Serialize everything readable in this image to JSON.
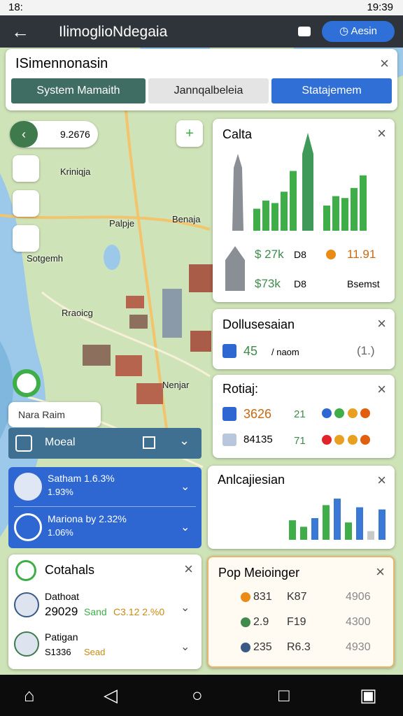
{
  "status_bar": {
    "time_left": "18:",
    "time_right": "19:39"
  },
  "header": {
    "title": "IlimoglioNdegaia",
    "button": "Aesin"
  },
  "top_panel": {
    "title": "ISimennonasin",
    "tabs": [
      "System Mamaith",
      "Jannqalbeleia",
      "Statajemem"
    ]
  },
  "map": {
    "search_value": "9.2676",
    "labels": [
      "Kriniqja",
      "Palpje",
      "Benaja",
      "Sotgemh",
      "Rraoicg",
      "Nenjar"
    ]
  },
  "left_panel": {
    "chip": "Nara Raim",
    "layer": "Moeal",
    "stats": [
      {
        "label": "Satham 1.6.3%",
        "sub": "1.93%"
      },
      {
        "label": "Mariona by 2.32%",
        "sub": "1.06%"
      }
    ],
    "contacts": {
      "title": "Cotahals",
      "items": [
        {
          "name": "Dathoat",
          "line": [
            "29029",
            "Sand",
            "C3.12 2.%0"
          ]
        },
        {
          "name": "Patigan",
          "line": [
            "S1336",
            "Sead"
          ]
        }
      ]
    }
  },
  "cards": {
    "calta": {
      "title": "Calta",
      "chart_a": {
        "values": [
          35,
          48,
          44,
          62,
          95
        ],
        "color": "#3fae49"
      },
      "chart_b": {
        "values": [
          40,
          55,
          52,
          68,
          88
        ],
        "color": "#3fae49"
      },
      "rows": [
        [
          "$ 27k",
          "D8",
          "11.91"
        ],
        [
          "$73k",
          "D8",
          "Bsemst"
        ]
      ]
    },
    "dollusesaian": {
      "title": "Dollusesaian",
      "value": "45",
      "unit": "/ naom",
      "extra": "(1.)"
    },
    "rotiaj": {
      "title": "Rotiaj:",
      "rows": [
        [
          "3626",
          "21"
        ],
        [
          "84135",
          "71"
        ]
      ]
    },
    "anlcajiesian": {
      "title": "Anlcajiesian",
      "values": [
        45,
        30,
        50,
        80,
        95,
        40,
        75,
        20,
        70
      ],
      "colors": [
        "#3fae49",
        "#3fae49",
        "#3a78d6",
        "#3fae49",
        "#3a78d6",
        "#3fae49",
        "#3a78d6",
        "#c9c9c9",
        "#3a78d6"
      ]
    },
    "pop": {
      "title": "Pop Meioinger",
      "rows": [
        [
          "831",
          "K87",
          "4906"
        ],
        [
          "2.9",
          "F19",
          "4300"
        ],
        [
          "235",
          "R6.3",
          "4930"
        ]
      ]
    }
  }
}
